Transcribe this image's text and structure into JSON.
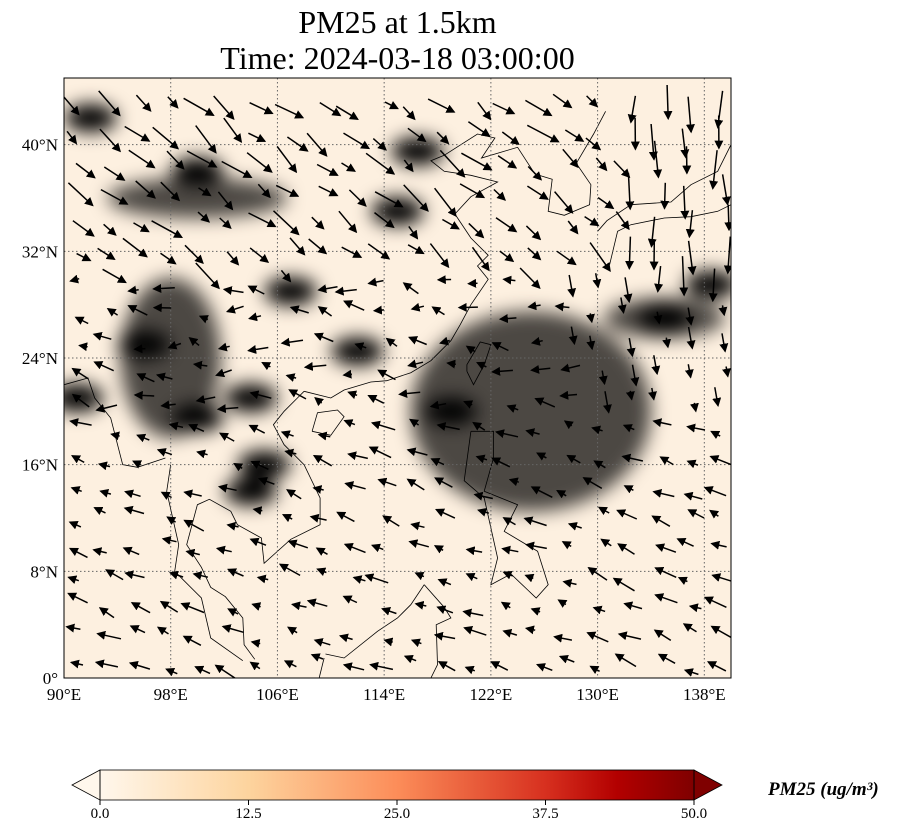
{
  "title": {
    "line1": "PM25 at 1.5km",
    "line2": "Time: 2024-03-18 03:00:00"
  },
  "chart_data": {
    "type": "heatmap",
    "title": "PM25 at 1.5km / Time: 2024-03-18 03:00:00",
    "extent": {
      "lon": [
        90,
        140
      ],
      "lat": [
        0,
        45
      ]
    },
    "x_ticks": [
      {
        "v": 90,
        "label": "90°E"
      },
      {
        "v": 98,
        "label": "98°E"
      },
      {
        "v": 106,
        "label": "106°E"
      },
      {
        "v": 114,
        "label": "114°E"
      },
      {
        "v": 122,
        "label": "122°E"
      },
      {
        "v": 130,
        "label": "130°E"
      },
      {
        "v": 138,
        "label": "138°E"
      }
    ],
    "y_ticks": [
      {
        "v": 0,
        "label": "0°"
      },
      {
        "v": 8,
        "label": "8°N"
      },
      {
        "v": 16,
        "label": "16°N"
      },
      {
        "v": 24,
        "label": "24°N"
      },
      {
        "v": 32,
        "label": "32°N"
      },
      {
        "v": 40,
        "label": "40°N"
      }
    ],
    "grid": true,
    "colormap": "OrRd",
    "colorbar": {
      "label": "PM25 (ug/m³)",
      "range": [
        0,
        50
      ],
      "ticks": [
        "0.0",
        "12.5",
        "25.0",
        "37.5",
        "50.0"
      ],
      "extend": "both"
    },
    "hotspots": [
      {
        "lon": 92,
        "lat": 42,
        "value": 45
      },
      {
        "lon": 91,
        "lat": 21,
        "value": 40
      },
      {
        "lon": 100,
        "lat": 19.5,
        "value": 48
      },
      {
        "lon": 104,
        "lat": 21,
        "value": 40
      },
      {
        "lon": 104,
        "lat": 14,
        "value": 30
      },
      {
        "lon": 107,
        "lat": 29,
        "value": 35
      },
      {
        "lon": 116.5,
        "lat": 39.5,
        "value": 38
      },
      {
        "lon": 115,
        "lat": 35,
        "value": 25
      },
      {
        "lon": 112,
        "lat": 24.5,
        "value": 28
      },
      {
        "lon": 135,
        "lat": 27,
        "value": 40
      },
      {
        "lon": 138.5,
        "lat": 29.5,
        "value": 35
      },
      {
        "lon": 100,
        "lat": 38,
        "value": 20
      },
      {
        "lon": 96,
        "lat": 25,
        "value": 25
      },
      {
        "lon": 119,
        "lat": 20,
        "value": 15
      },
      {
        "lon": 105,
        "lat": 16,
        "value": 20
      }
    ]
  }
}
